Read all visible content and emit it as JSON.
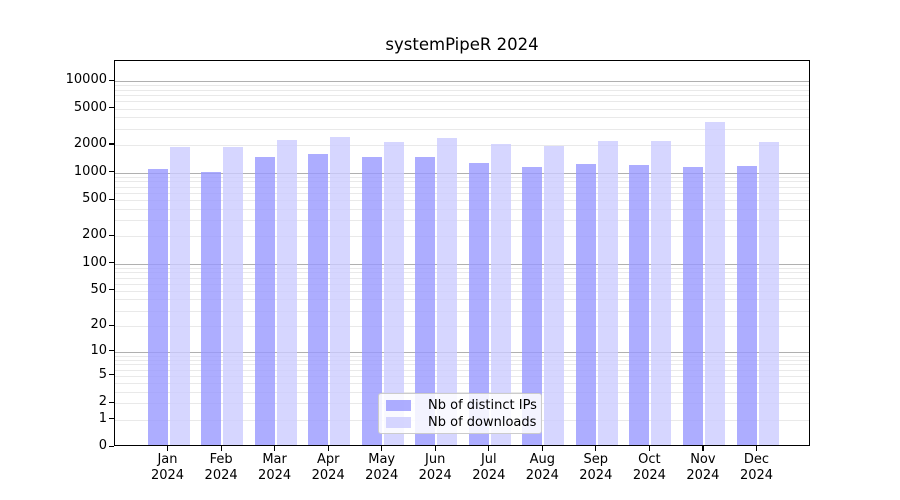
{
  "title": "systemPipeR 2024",
  "legend": {
    "items": [
      {
        "label": "Nb of distinct IPs",
        "color": "#9999ff"
      },
      {
        "label": "Nb of downloads",
        "color": "#ccccff"
      }
    ]
  },
  "chart_data": {
    "type": "bar",
    "title": "systemPipeR 2024",
    "categories": [
      "Jan 2024",
      "Feb 2024",
      "Mar 2024",
      "Apr 2024",
      "May 2024",
      "Jun 2024",
      "Jul 2024",
      "Aug 2024",
      "Sep 2024",
      "Oct 2024",
      "Nov 2024",
      "Dec 2024"
    ],
    "series": [
      {
        "name": "Nb of distinct IPs",
        "color": "#9999ff",
        "values": [
          1050,
          960,
          1390,
          1520,
          1400,
          1390,
          1210,
          1090,
          1170,
          1160,
          1100,
          1130
        ]
      },
      {
        "name": "Nb of downloads",
        "color": "#ccccff",
        "values": [
          1800,
          1800,
          2150,
          2320,
          2050,
          2270,
          1940,
          1840,
          2100,
          2110,
          3350,
          2060
        ]
      }
    ],
    "bar_alpha": 0.8,
    "xlabel": "",
    "ylabel": "",
    "yscale": "log1p",
    "yticks": [
      0,
      1,
      2,
      5,
      10,
      20,
      50,
      100,
      200,
      500,
      1000,
      2000,
      5000,
      10000
    ],
    "ylim": [
      0,
      16500
    ],
    "grid": "horizontal major (powers of 10, gray) + minor (2-9 per decade, light gray)",
    "legend_position": "lower center inside plot",
    "grid_colors": {
      "major": "#b0b0b0",
      "minor": "#e9e9e9"
    }
  }
}
